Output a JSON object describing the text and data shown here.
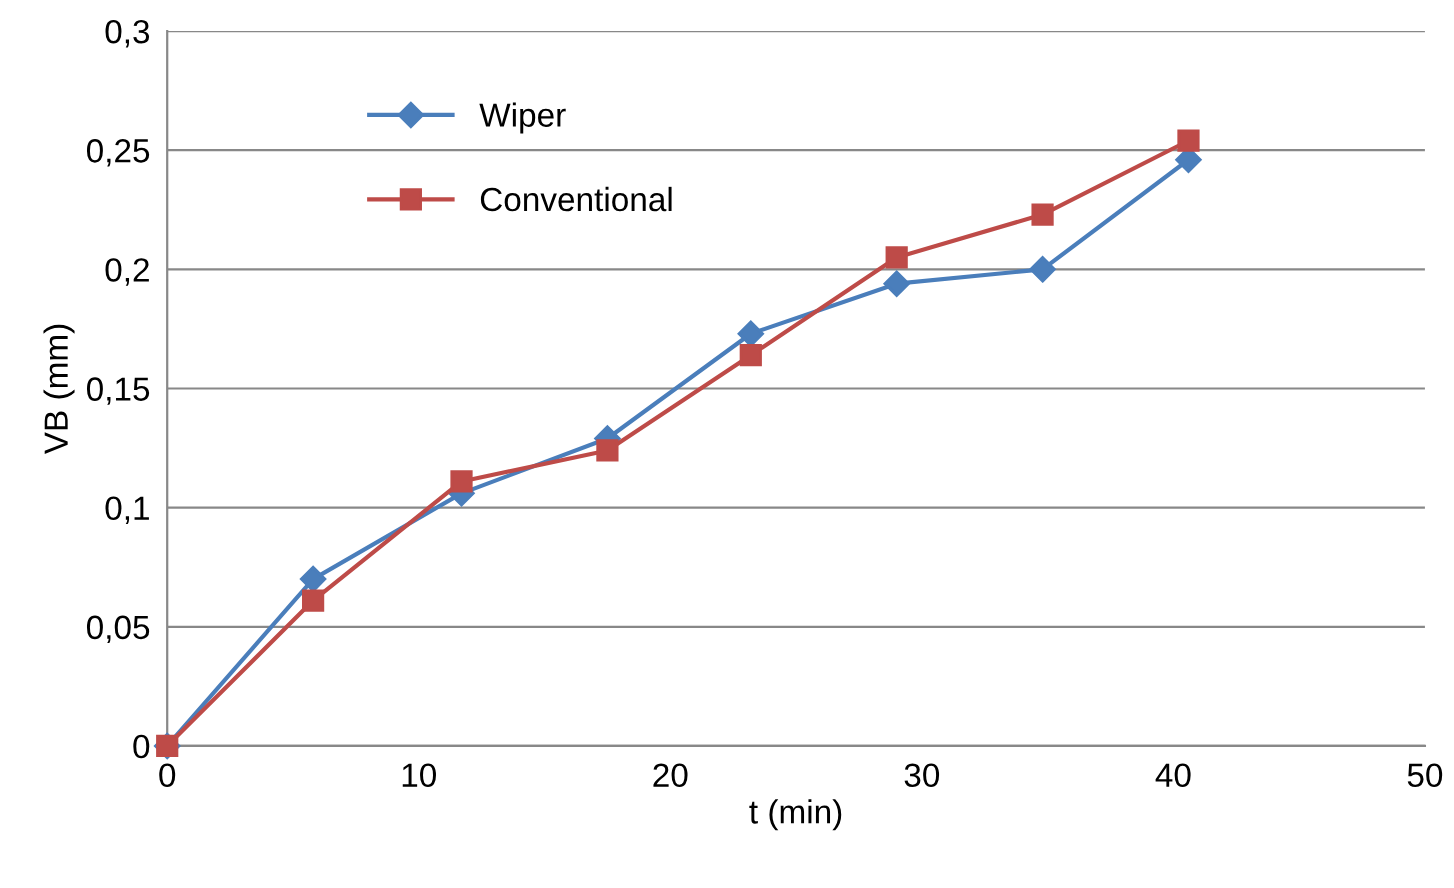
{
  "chart_data": {
    "type": "line",
    "xlabel": "t (min)",
    "ylabel": "VB (mm)",
    "x": [
      0,
      5.8,
      11.7,
      17.5,
      23.2,
      29,
      34.8,
      40.6
    ],
    "series": [
      {
        "name": "Wiper",
        "color": "#4a7ebb",
        "marker": "diamond",
        "values": [
          0,
          0.07,
          0.106,
          0.129,
          0.173,
          0.194,
          0.2,
          0.246
        ]
      },
      {
        "name": "Conventional",
        "color": "#be4b48",
        "marker": "square",
        "values": [
          0,
          0.061,
          0.111,
          0.124,
          0.164,
          0.205,
          0.223,
          0.254
        ]
      }
    ],
    "xlim": [
      0,
      50
    ],
    "xticks": [
      0,
      10,
      20,
      30,
      40,
      50
    ],
    "ylim": [
      0,
      0.3
    ],
    "yticks": [
      {
        "value": 0,
        "label": "0"
      },
      {
        "value": 0.05,
        "label": "0,05"
      },
      {
        "value": 0.1,
        "label": "0,1"
      },
      {
        "value": 0.15,
        "label": "0,15"
      },
      {
        "value": 0.2,
        "label": "0,2"
      },
      {
        "value": 0.25,
        "label": "0,25"
      },
      {
        "value": 0.3,
        "label": "0,3"
      }
    ],
    "grid": "y",
    "legend": "top left",
    "line_style": "solid"
  }
}
